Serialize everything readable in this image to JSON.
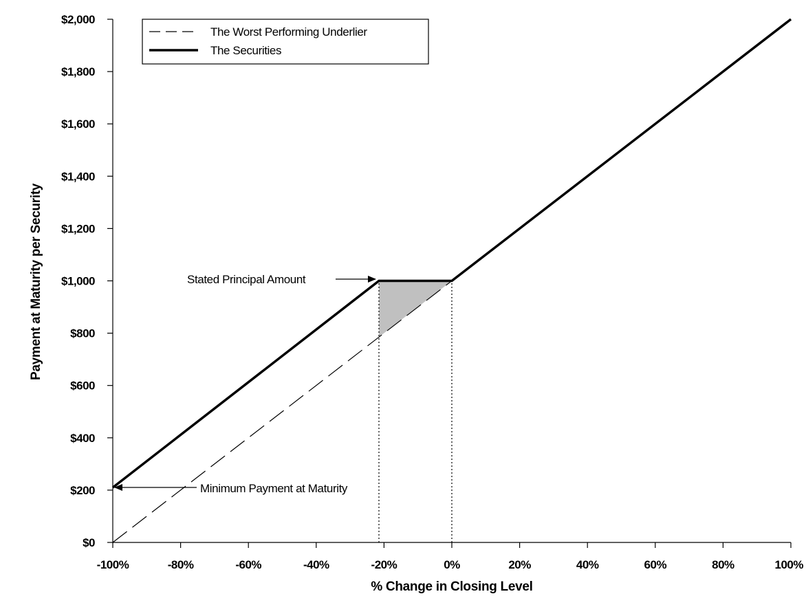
{
  "chart_data": {
    "type": "line",
    "xlabel": "% Change in Closing Level",
    "ylabel": "Payment at Maturity per Security",
    "xlim": [
      -100,
      100
    ],
    "ylim": [
      0,
      2000
    ],
    "x_ticks": [
      -100,
      -80,
      -60,
      -40,
      -20,
      0,
      20,
      40,
      60,
      80,
      100
    ],
    "x_tick_labels": [
      "-100%",
      "-80%",
      "-60%",
      "-40%",
      "-20%",
      "0%",
      "20%",
      "40%",
      "60%",
      "80%",
      "100%"
    ],
    "y_ticks": [
      0,
      200,
      400,
      600,
      800,
      1000,
      1200,
      1400,
      1600,
      1800,
      2000
    ],
    "y_tick_labels": [
      "$0",
      "$200",
      "$400",
      "$600",
      "$800",
      "$1,000",
      "$1,200",
      "$1,400",
      "$1,600",
      "$1,800",
      "$2,000"
    ],
    "grid": false,
    "legend_position": "top-left",
    "series": [
      {
        "name": "The Worst Performing Underlier",
        "style": "dashed",
        "color": "#000000",
        "points": [
          [
            -100,
            0
          ],
          [
            100,
            2000
          ]
        ]
      },
      {
        "name": "The Securities",
        "style": "solid",
        "color": "#000000",
        "points": [
          [
            -100,
            210
          ],
          [
            -21.5,
            1000
          ],
          [
            0,
            1000
          ],
          [
            100,
            2000
          ]
        ]
      }
    ],
    "shaded_region": {
      "color": "#c0c0c0",
      "points": [
        [
          -21.5,
          1000
        ],
        [
          0,
          1000
        ],
        [
          -21.5,
          785
        ]
      ]
    },
    "reference_lines": [
      {
        "x": -21.5,
        "from": 0,
        "to": 1000,
        "style": "dotted"
      },
      {
        "x": 0,
        "from": 0,
        "to": 1000,
        "style": "dotted"
      }
    ],
    "annotations": [
      {
        "text": "Stated Principal Amount",
        "target": [
          -21.5,
          1000
        ]
      },
      {
        "text": "Minimum Payment at Maturity",
        "target": [
          -100,
          210
        ]
      }
    ]
  }
}
